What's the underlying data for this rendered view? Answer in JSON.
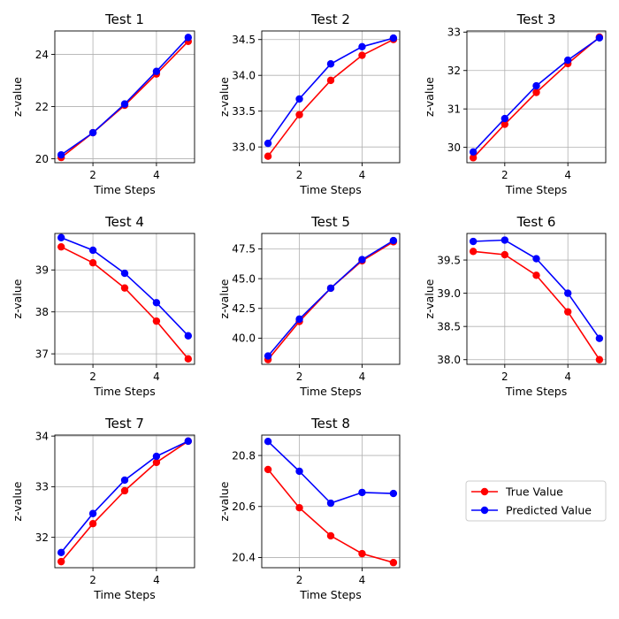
{
  "legend": {
    "entries": [
      {
        "label": "True Value",
        "color": "#ff0000"
      },
      {
        "label": "Predicted Value",
        "color": "#0000ff"
      }
    ]
  },
  "chart_data": [
    {
      "type": "line",
      "title": "Test 1",
      "xlabel": "Time Steps",
      "ylabel": "z-value",
      "x": [
        1,
        2,
        3,
        4,
        5
      ],
      "xlim": [
        0.8,
        5.2
      ],
      "xticks": [
        2,
        4
      ],
      "ylim": [
        19.85,
        24.9
      ],
      "yticks": [
        20,
        22,
        24
      ],
      "ytick_labels": [
        "20",
        "22",
        "24"
      ],
      "grid": true,
      "series": [
        {
          "name": "True Value",
          "color": "#ff0000",
          "values": [
            20.05,
            21.0,
            22.05,
            23.25,
            24.5
          ]
        },
        {
          "name": "Predicted Value",
          "color": "#0000ff",
          "values": [
            20.15,
            21.0,
            22.1,
            23.35,
            24.65
          ]
        }
      ]
    },
    {
      "type": "line",
      "title": "Test 2",
      "xlabel": "Time Steps",
      "ylabel": "z-value",
      "x": [
        1,
        2,
        3,
        4,
        5
      ],
      "xlim": [
        0.8,
        5.2
      ],
      "xticks": [
        2,
        4
      ],
      "ylim": [
        32.78,
        34.62
      ],
      "yticks": [
        33.0,
        33.5,
        34.0,
        34.5
      ],
      "ytick_labels": [
        "33.0",
        "33.5",
        "34.0",
        "34.5"
      ],
      "grid": true,
      "series": [
        {
          "name": "True Value",
          "color": "#ff0000",
          "values": [
            32.87,
            33.45,
            33.93,
            34.28,
            34.5
          ]
        },
        {
          "name": "Predicted Value",
          "color": "#0000ff",
          "values": [
            33.05,
            33.67,
            34.16,
            34.4,
            34.52
          ]
        }
      ]
    },
    {
      "type": "line",
      "title": "Test 3",
      "xlabel": "Time Steps",
      "ylabel": "z-value",
      "x": [
        1,
        2,
        3,
        4,
        5
      ],
      "xlim": [
        0.8,
        5.2
      ],
      "xticks": [
        2,
        4
      ],
      "ylim": [
        29.6,
        33.03
      ],
      "yticks": [
        30,
        31,
        32,
        33
      ],
      "ytick_labels": [
        "30",
        "31",
        "32",
        "33"
      ],
      "grid": true,
      "series": [
        {
          "name": "True Value",
          "color": "#ff0000",
          "values": [
            29.73,
            30.6,
            31.43,
            32.18,
            32.87
          ]
        },
        {
          "name": "Predicted Value",
          "color": "#0000ff",
          "values": [
            29.88,
            30.75,
            31.6,
            32.27,
            32.85
          ]
        }
      ]
    },
    {
      "type": "line",
      "title": "Test 4",
      "xlabel": "Time Steps",
      "ylabel": "z-value",
      "x": [
        1,
        2,
        3,
        4,
        5
      ],
      "xlim": [
        0.8,
        5.2
      ],
      "xticks": [
        2,
        4
      ],
      "ylim": [
        36.75,
        39.87
      ],
      "yticks": [
        37,
        38,
        39
      ],
      "ytick_labels": [
        "37",
        "38",
        "39"
      ],
      "grid": true,
      "series": [
        {
          "name": "True Value",
          "color": "#ff0000",
          "values": [
            39.55,
            39.17,
            38.57,
            37.78,
            36.88
          ]
        },
        {
          "name": "Predicted Value",
          "color": "#0000ff",
          "values": [
            39.77,
            39.47,
            38.92,
            38.22,
            37.43
          ]
        }
      ]
    },
    {
      "type": "line",
      "title": "Test 5",
      "xlabel": "Time Steps",
      "ylabel": "z-value",
      "x": [
        1,
        2,
        3,
        4,
        5
      ],
      "xlim": [
        0.8,
        5.2
      ],
      "xticks": [
        2,
        4
      ],
      "ylim": [
        37.8,
        48.8
      ],
      "yticks": [
        40.0,
        42.5,
        45.0,
        47.5
      ],
      "ytick_labels": [
        "40.0",
        "42.5",
        "45.0",
        "47.5"
      ],
      "grid": true,
      "series": [
        {
          "name": "True Value",
          "color": "#ff0000",
          "values": [
            38.2,
            41.4,
            44.2,
            46.5,
            48.1
          ]
        },
        {
          "name": "Predicted Value",
          "color": "#0000ff",
          "values": [
            38.5,
            41.6,
            44.2,
            46.6,
            48.2
          ]
        }
      ]
    },
    {
      "type": "line",
      "title": "Test 6",
      "xlabel": "Time Steps",
      "ylabel": "z-value",
      "x": [
        1,
        2,
        3,
        4,
        5
      ],
      "xlim": [
        0.8,
        5.2
      ],
      "xticks": [
        2,
        4
      ],
      "ylim": [
        37.93,
        39.9
      ],
      "yticks": [
        38.0,
        38.5,
        39.0,
        39.5
      ],
      "ytick_labels": [
        "38.0",
        "38.5",
        "39.0",
        "39.5"
      ],
      "grid": true,
      "series": [
        {
          "name": "True Value",
          "color": "#ff0000",
          "values": [
            39.63,
            39.58,
            39.27,
            38.72,
            38.0
          ]
        },
        {
          "name": "Predicted Value",
          "color": "#0000ff",
          "values": [
            39.78,
            39.8,
            39.52,
            39.0,
            38.32
          ]
        }
      ]
    },
    {
      "type": "line",
      "title": "Test 7",
      "xlabel": "Time Steps",
      "ylabel": "z-value",
      "x": [
        1,
        2,
        3,
        4,
        5
      ],
      "xlim": [
        0.8,
        5.2
      ],
      "xticks": [
        2,
        4
      ],
      "ylim": [
        31.4,
        34.02
      ],
      "yticks": [
        32,
        33,
        34
      ],
      "ytick_labels": [
        "32",
        "33",
        "34"
      ],
      "grid": true,
      "series": [
        {
          "name": "True Value",
          "color": "#ff0000",
          "values": [
            31.52,
            32.27,
            32.92,
            33.48,
            33.9
          ]
        },
        {
          "name": "Predicted Value",
          "color": "#0000ff",
          "values": [
            31.7,
            32.47,
            33.13,
            33.6,
            33.9
          ]
        }
      ]
    },
    {
      "type": "line",
      "title": "Test 8",
      "xlabel": "Time Steps",
      "ylabel": "z-value",
      "x": [
        1,
        2,
        3,
        4,
        5
      ],
      "xlim": [
        0.8,
        5.2
      ],
      "xticks": [
        2,
        4
      ],
      "ylim": [
        20.36,
        20.88
      ],
      "yticks": [
        20.4,
        20.6,
        20.8
      ],
      "ytick_labels": [
        "20.4",
        "20.6",
        "20.8"
      ],
      "grid": true,
      "series": [
        {
          "name": "True Value",
          "color": "#ff0000",
          "values": [
            20.745,
            20.595,
            20.485,
            20.415,
            20.38
          ]
        },
        {
          "name": "Predicted Value",
          "color": "#0000ff",
          "values": [
            20.855,
            20.738,
            20.613,
            20.655,
            20.651
          ]
        }
      ]
    }
  ]
}
